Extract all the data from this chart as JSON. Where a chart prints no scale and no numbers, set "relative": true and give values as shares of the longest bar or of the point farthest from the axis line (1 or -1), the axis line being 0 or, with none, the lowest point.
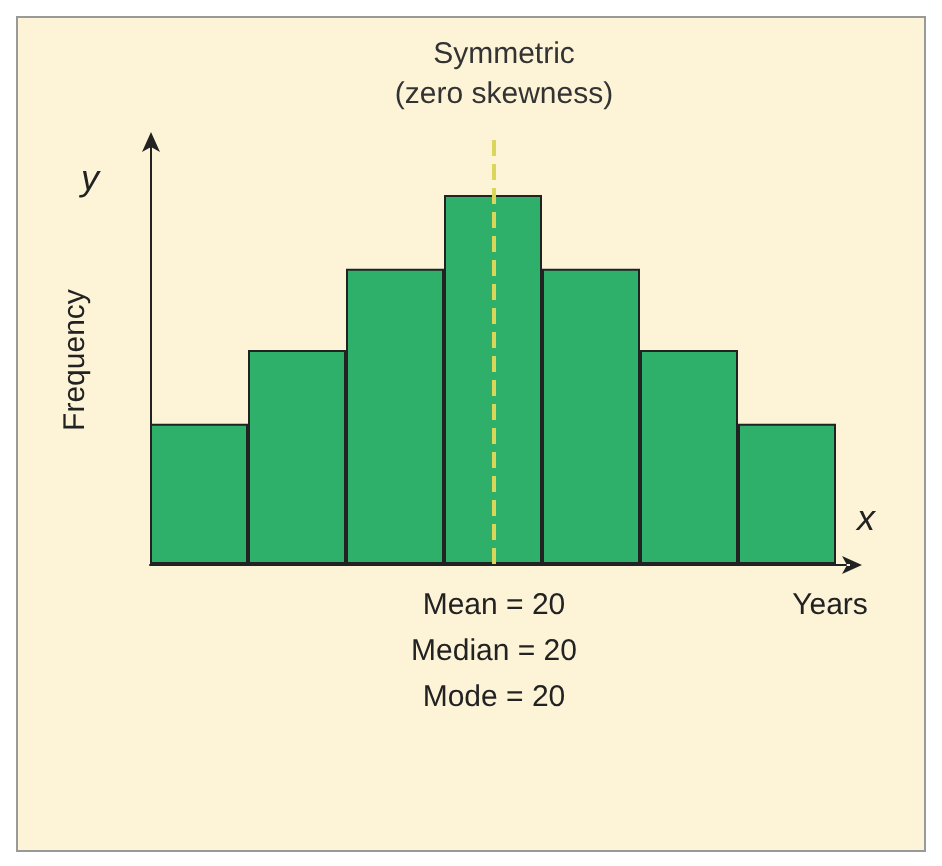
{
  "chart_data": {
    "type": "bar",
    "title": "Symmetric\n(zero skewness)",
    "xlabel": "Years",
    "ylabel": "Frequency",
    "relative": true,
    "categories": [
      null,
      null,
      null,
      null,
      null,
      null,
      null
    ],
    "values": [
      0.38,
      0.58,
      0.8,
      1,
      0.8,
      0.58,
      0.38
    ],
    "color": "#2fb06a",
    "ref_lines": [
      {
        "axis": "x",
        "label": "Mean = 20",
        "color": "#d9d65a",
        "line_style": "dashed"
      }
    ],
    "annotations": [
      "y",
      "x",
      "Median = 20",
      "Mode = 20"
    ]
  }
}
